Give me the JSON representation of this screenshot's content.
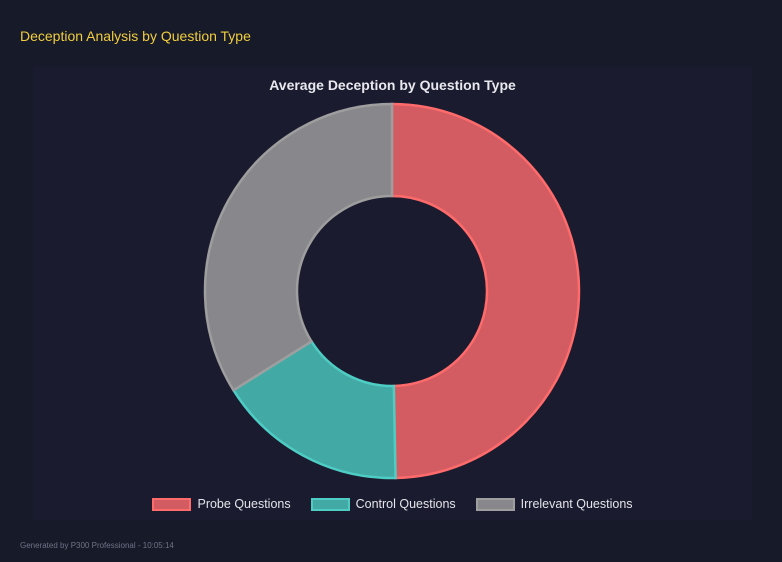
{
  "header": {
    "title": "Deception Analysis by Question Type"
  },
  "chart_data": {
    "type": "pie",
    "variant": "doughnut",
    "title": "Average Deception by Question Type",
    "categories": [
      "Probe Questions",
      "Control Questions",
      "Irrelevant Questions"
    ],
    "values": [
      49.7,
      16.4,
      33.9
    ],
    "colors": [
      "#d35c62",
      "#43a9a5",
      "#88878c"
    ],
    "border_colors": [
      "#ff6b6b",
      "#4ecdc4",
      "#9e9e9e"
    ],
    "legend_placement": "bottom"
  },
  "footer": {
    "text": "Generated by P300 Professional - 10:05:14"
  }
}
